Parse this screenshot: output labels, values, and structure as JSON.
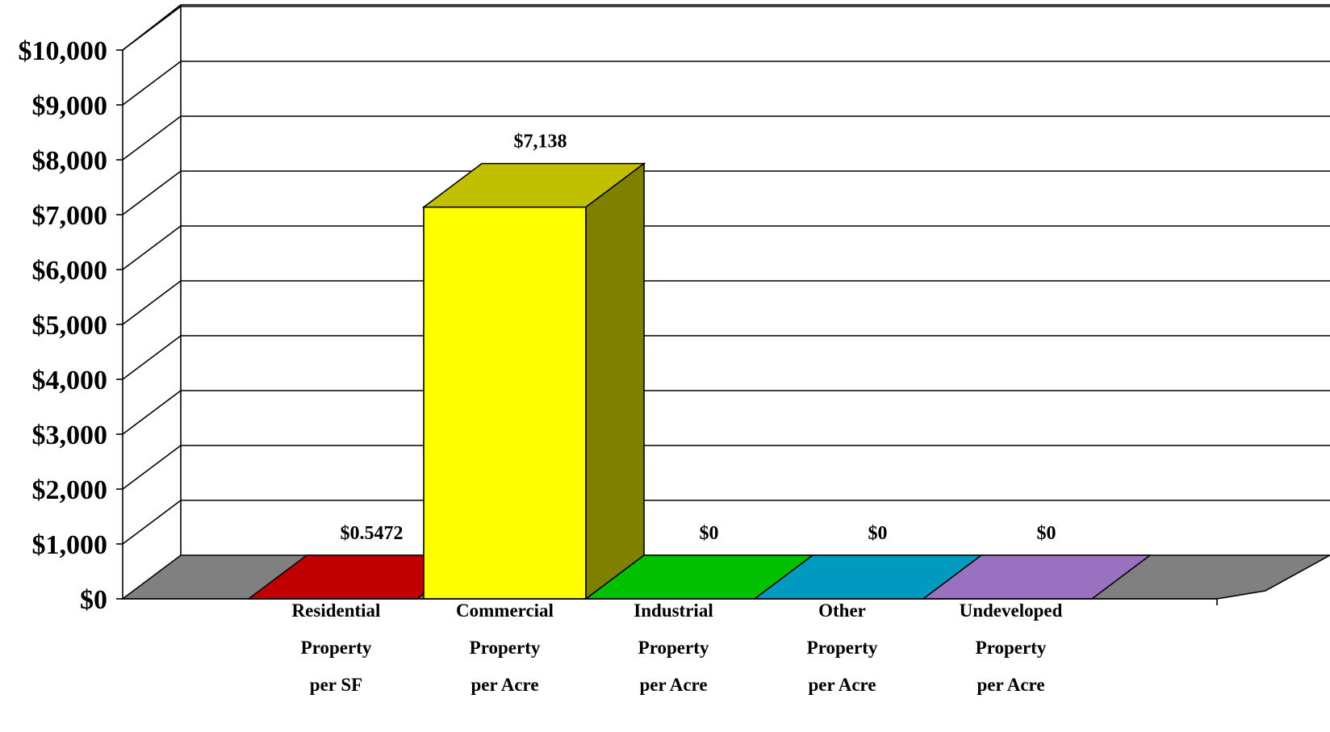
{
  "chart_data": {
    "type": "bar",
    "style": "3d",
    "title": "",
    "xlabel": "",
    "ylabel": "",
    "ylim": [
      0,
      10000
    ],
    "y_ticks": [
      "$0",
      "$1,000",
      "$2,000",
      "$3,000",
      "$4,000",
      "$5,000",
      "$6,000",
      "$7,000",
      "$8,000",
      "$9,000",
      "$10,000"
    ],
    "grid": true,
    "legend": "none",
    "categories": [
      [
        "Residential",
        "Property",
        "per SF"
      ],
      [
        "Commercial",
        "Property",
        "per Acre"
      ],
      [
        "Industrial",
        "Property",
        "per Acre"
      ],
      [
        "Other",
        "Property",
        "per Acre"
      ],
      [
        "Undeveloped",
        "Property",
        "per Acre"
      ]
    ],
    "values": [
      0.5472,
      7138,
      0,
      0,
      0
    ],
    "data_labels": [
      "$0.5472",
      "$7,138",
      "$0",
      "$0",
      "$0"
    ],
    "colors": {
      "floor": "#808080",
      "bars": [
        "#c00000",
        "#ffff00",
        "#00c000",
        "#0099c0",
        "#9a70c0"
      ],
      "bar_tops": [
        "#c00000",
        "#c0c000",
        "#00c000",
        "#0099c0",
        "#9a70c0"
      ],
      "bar_sides": [
        "#800000",
        "#808000",
        "#008000",
        "#006680",
        "#664a80"
      ]
    }
  }
}
